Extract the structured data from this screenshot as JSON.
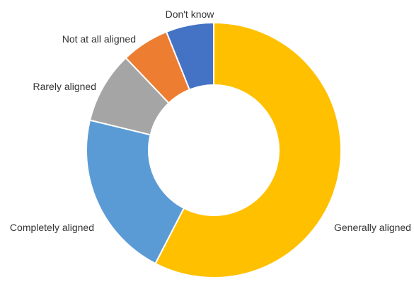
{
  "chart_data": {
    "type": "pie",
    "variant": "donut",
    "title": "",
    "legend": "none",
    "series": [
      {
        "slices": [
          {
            "label": "Generally aligned",
            "value": 57,
            "color": "#FFC000"
          },
          {
            "label": "Completely aligned",
            "value": 21,
            "color": "#5B9BD5"
          },
          {
            "label": "Rarely aligned",
            "value": 9,
            "color": "#A5A5A5"
          },
          {
            "label": "Not at all aligned",
            "value": 6,
            "color": "#ED7D31"
          },
          {
            "label": "Don't know",
            "value": 6,
            "color": "#4472C4"
          }
        ]
      }
    ]
  }
}
